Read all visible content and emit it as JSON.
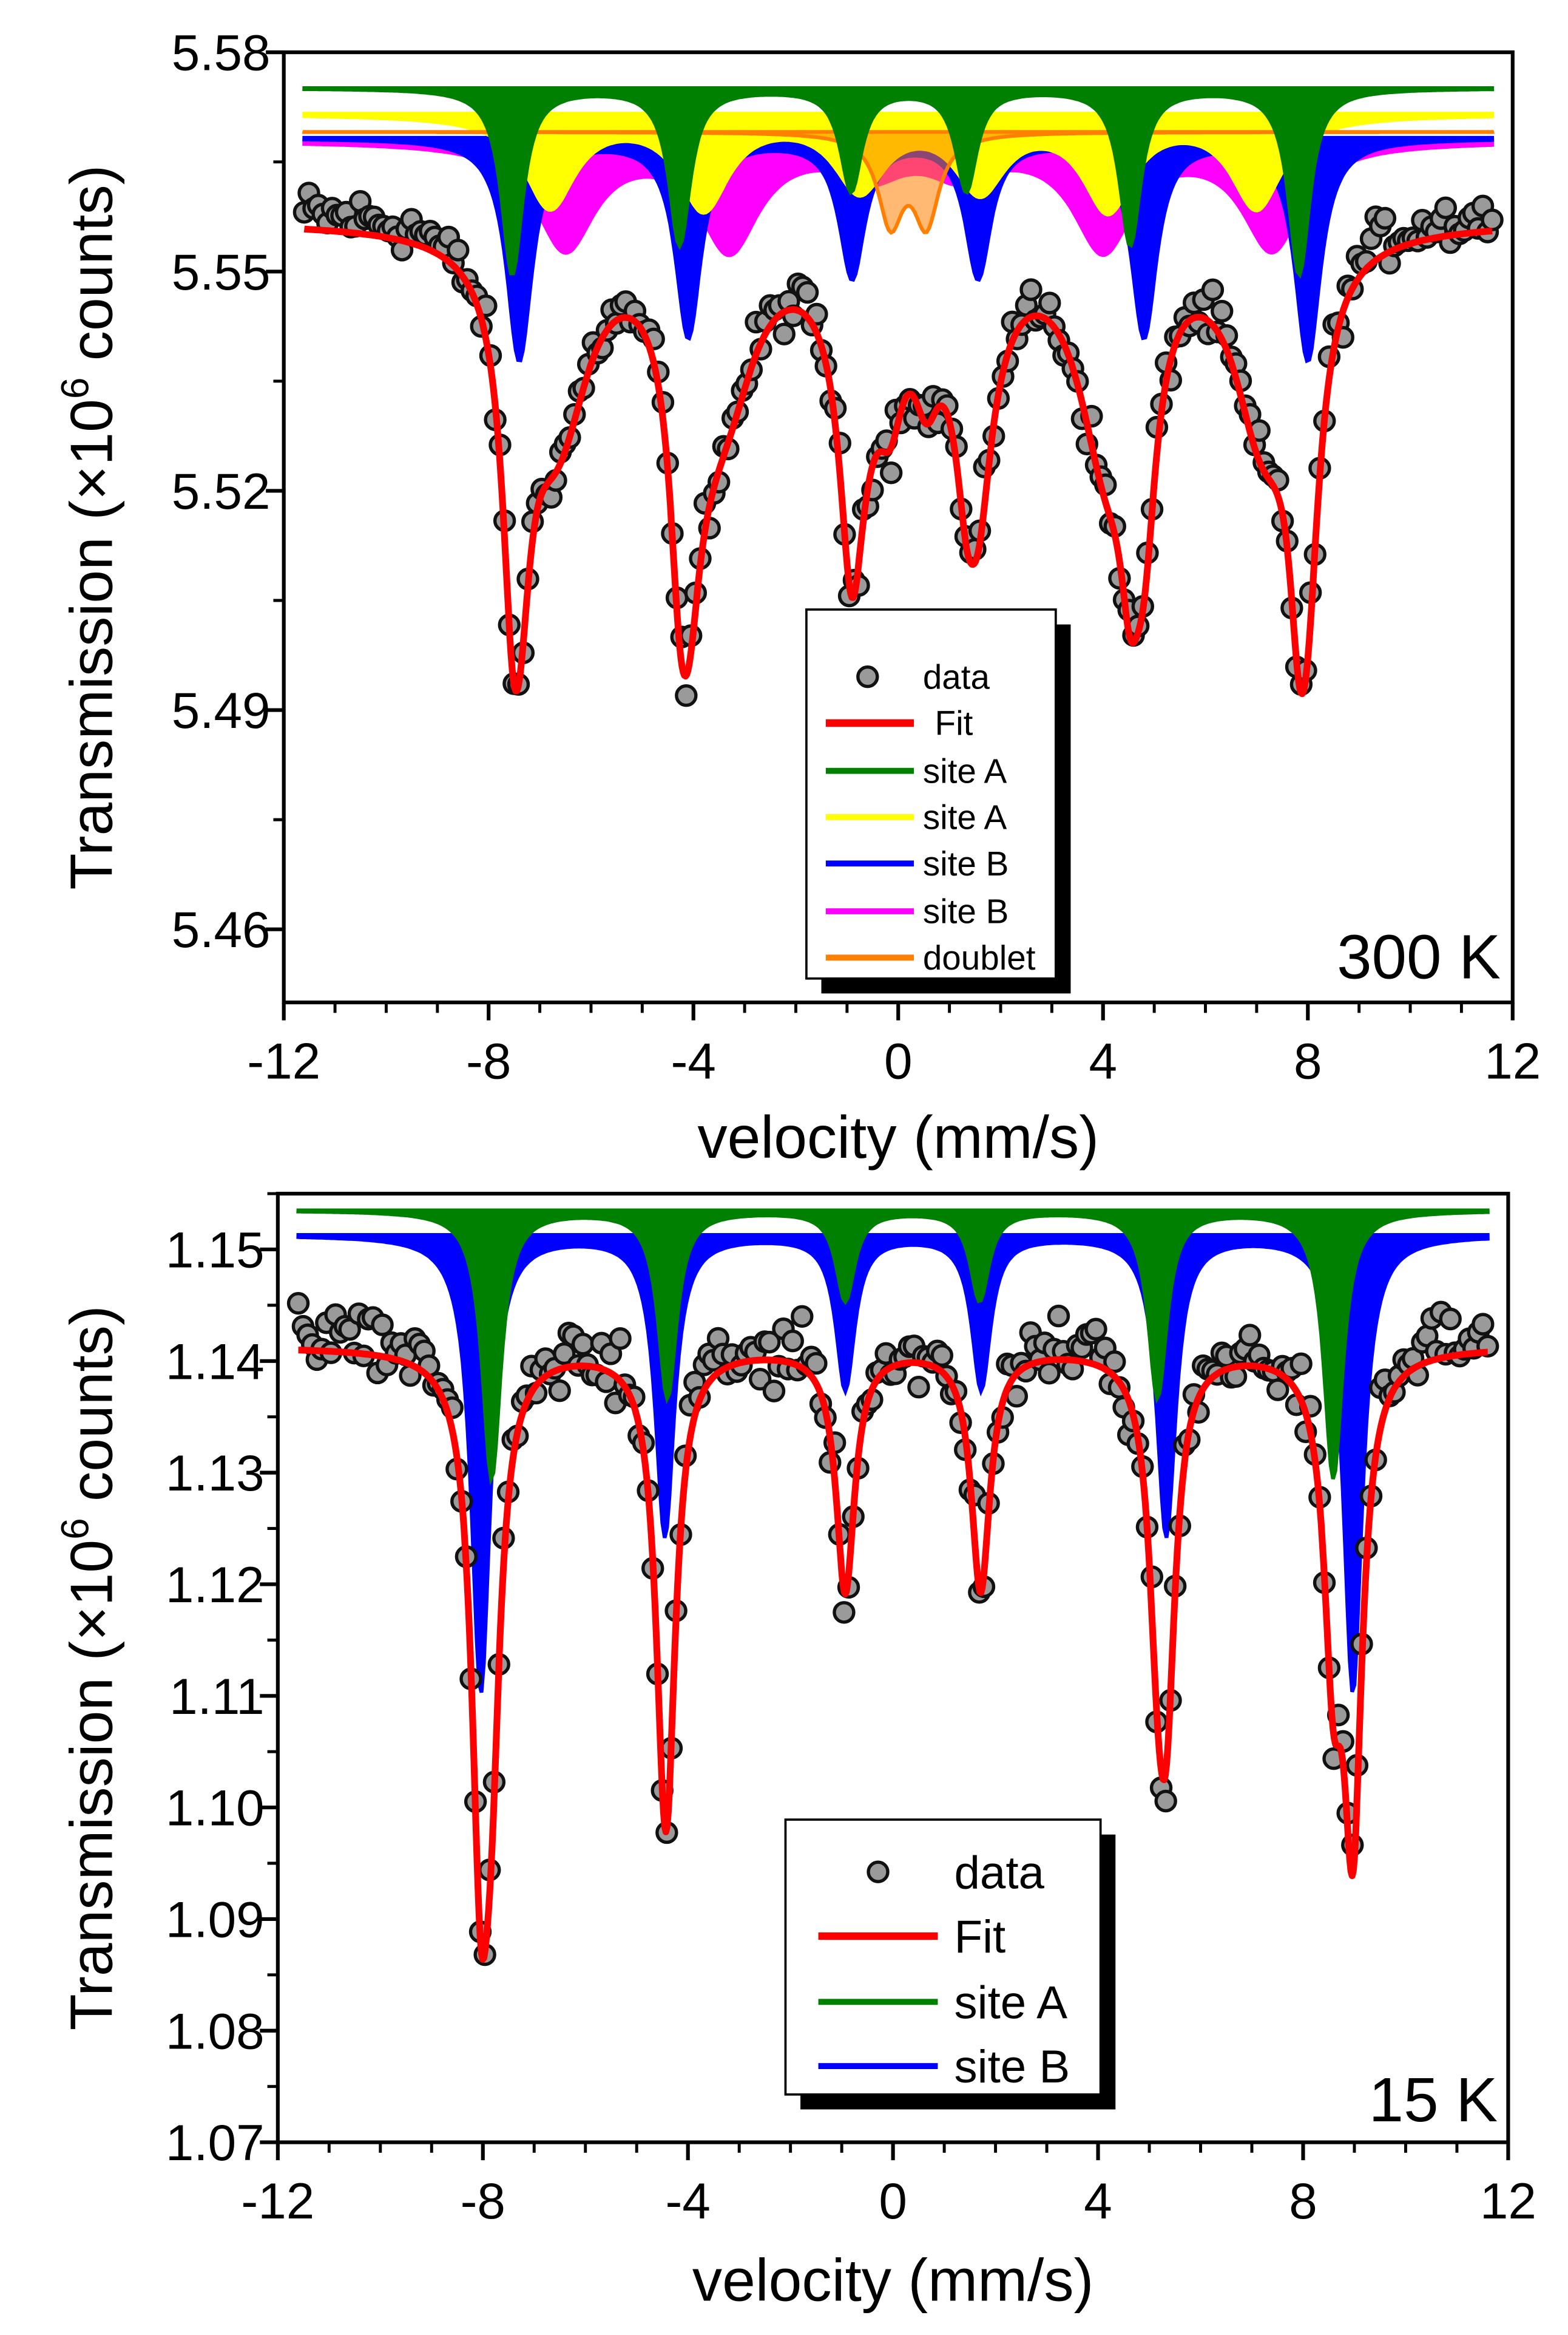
{
  "chart_data": [
    {
      "type": "line",
      "title": "300 K",
      "xlabel": "velocity (mm/s)",
      "ylabel_pre": "Transmission (×10",
      "ylabel_sup": "6",
      "ylabel_post": " counts)",
      "xlim": [
        -12,
        12
      ],
      "ylim": [
        5.45,
        5.58
      ],
      "xticks": [
        "-12",
        "-8",
        "-4",
        "0",
        "4",
        "8",
        "12"
      ],
      "xtick_values": [
        -12,
        -8,
        -4,
        0,
        4,
        8,
        12
      ],
      "yticks": [
        "5.46",
        "5.49",
        "5.52",
        "5.55",
        "5.58"
      ],
      "ytick_values": [
        5.46,
        5.49,
        5.52,
        5.55,
        5.58
      ],
      "legend": [
        "data",
        "Fit",
        "site A",
        "site A",
        "site B",
        "site B",
        "doublet"
      ],
      "legend_placement": "bottom-center",
      "fit_baseline": 5.557,
      "components": [
        {
          "name": "site B",
          "color": "#ff00ff",
          "baseline": 5.5679,
          "width": 0.7,
          "lines": [
            [
              -6.5,
              0.0145
            ],
            [
              -3.3,
              0.0145
            ],
            [
              -0.5,
              0.004
            ],
            [
              1.2,
              0.004
            ],
            [
              4.0,
              0.0145
            ],
            [
              7.3,
              0.0145
            ]
          ]
        },
        {
          "name": "site B",
          "color": "#0000ff",
          "baseline": 5.5683,
          "width": 0.3,
          "lines": [
            [
              -7.4,
              0.0303
            ],
            [
              -4.1,
              0.027
            ],
            [
              -0.9,
              0.0188
            ],
            [
              1.56,
              0.0188
            ],
            [
              4.8,
              0.027
            ],
            [
              8.0,
              0.0303
            ]
          ]
        },
        {
          "name": "site A",
          "color": "#ffff00",
          "baseline": 5.5716,
          "width": 0.6,
          "lines": [
            [
              -6.8,
              0.0125
            ],
            [
              -3.8,
              0.0125
            ],
            [
              -0.75,
              0.0098
            ],
            [
              1.6,
              0.0098
            ],
            [
              4.1,
              0.0125
            ],
            [
              7.0,
              0.0125
            ]
          ]
        },
        {
          "name": "doublet",
          "color": "#ff8000",
          "baseline": 5.5691,
          "width": 0.3,
          "lines": [
            [
              -0.15,
              0.0119
            ],
            [
              0.55,
              0.0119
            ]
          ]
        },
        {
          "name": "site A",
          "color": "#008000",
          "baseline": 5.5751,
          "width": 0.25,
          "lines": [
            [
              -7.54,
              0.0254
            ],
            [
              -4.27,
              0.0213
            ],
            [
              -0.92,
              0.0139
            ],
            [
              1.33,
              0.0139
            ],
            [
              4.53,
              0.0213
            ],
            [
              7.83,
              0.0254
            ]
          ]
        }
      ],
      "noise": 0.0022
    },
    {
      "type": "line",
      "title": "15 K",
      "xlabel": "velocity (mm/s)",
      "ylabel_pre": "Transmission (×10",
      "ylabel_sup": "6",
      "ylabel_post": " counts)",
      "xlim": [
        -12,
        12
      ],
      "ylim": [
        1.07,
        1.155
      ],
      "xticks": [
        "-12",
        "-8",
        "-4",
        "0",
        "4",
        "8",
        "12"
      ],
      "xtick_values": [
        -12,
        -8,
        -4,
        0,
        4,
        8,
        12
      ],
      "yticks": [
        "1.07",
        "1.08",
        "1.09",
        "1.10",
        "1.11",
        "1.12",
        "1.13",
        "1.14",
        "1.15"
      ],
      "ytick_values": [
        1.07,
        1.08,
        1.09,
        1.1,
        1.11,
        1.12,
        1.13,
        1.14,
        1.15
      ],
      "legend": [
        "data",
        "Fit",
        "site A",
        "site B"
      ],
      "legend_placement": "bottom-center",
      "fit_baseline": 1.1413,
      "components": [
        {
          "name": "site B",
          "color": "#0000ff",
          "baseline": 1.1513,
          "width": 0.22,
          "lines": [
            [
              -8.04,
              0.041
            ],
            [
              -4.45,
              0.0269
            ],
            [
              -0.93,
              0.0137
            ],
            [
              1.72,
              0.0137
            ],
            [
              5.33,
              0.0269
            ],
            [
              8.97,
              0.041
            ]
          ]
        },
        {
          "name": "site A",
          "color": "#008000",
          "baseline": 1.1535,
          "width": 0.22,
          "lines": [
            [
              -7.83,
              0.024
            ],
            [
              -4.4,
              0.0167
            ],
            [
              -0.93,
              0.008
            ],
            [
              1.69,
              0.008
            ],
            [
              5.16,
              0.0167
            ],
            [
              8.59,
              0.024
            ]
          ]
        }
      ],
      "noise": 0.0018
    }
  ]
}
